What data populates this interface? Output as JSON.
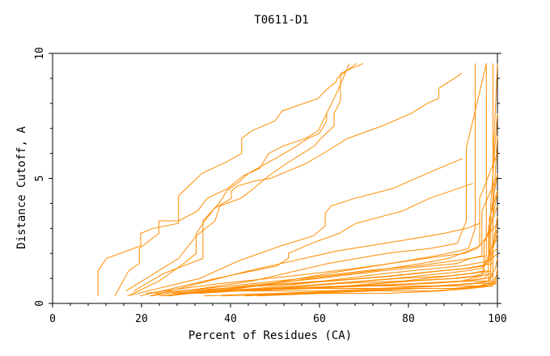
{
  "chart_data": {
    "type": "line",
    "title": "T0611-D1",
    "xlabel": "Percent of Residues (CA)",
    "ylabel": "Distance Cutoff, A",
    "xlim": [
      0,
      100
    ],
    "ylim": [
      0,
      10
    ],
    "x_ticks": [
      0,
      20,
      40,
      60,
      80,
      100
    ],
    "y_ticks": [
      0,
      5,
      10
    ],
    "grid": false,
    "legend": "none",
    "series_color": "#ff8c00",
    "series": [
      {
        "x": [
          10.2,
          10.2,
          12.1,
          19.8,
          19.8,
          22.5,
          28.3,
          28.3,
          33.6,
          39.5,
          42.5,
          42.5,
          44.7,
          50.0,
          51.6,
          53.3,
          59.7,
          61.3,
          63.9,
          63.9,
          68.3
        ],
        "y": [
          0.3,
          1.3,
          1.8,
          2.3,
          2.8,
          3.0,
          3.2,
          4.3,
          5.2,
          5.7,
          6.0,
          6.6,
          6.9,
          7.3,
          7.7,
          7.8,
          8.2,
          8.5,
          8.9,
          9.0,
          9.6
        ]
      },
      {
        "x": [
          14.0,
          17.1,
          19.5,
          19.5,
          23.9,
          23.9,
          28.3,
          32.6,
          34.7,
          39.4,
          42.8,
          46.5,
          48.6,
          51.9,
          56.9,
          59.7,
          64.1,
          66.7
        ],
        "y": [
          0.3,
          1.3,
          1.6,
          2.2,
          2.8,
          3.3,
          3.3,
          3.7,
          4.2,
          4.6,
          5.1,
          5.4,
          6.0,
          6.3,
          6.6,
          6.9,
          8.5,
          9.6
        ]
      },
      {
        "x": [
          18.3,
          25.0,
          33.8,
          33.8,
          37.4,
          39.2,
          42.2,
          44.0,
          50.1,
          54.0,
          57.4,
          60.0,
          61.6,
          61.6
        ],
        "y": [
          0.5,
          1.2,
          1.8,
          3.3,
          4.0,
          4.5,
          4.9,
          5.2,
          5.8,
          6.2,
          6.6,
          6.8,
          7.3,
          7.6
        ]
      },
      {
        "x": [
          16.5,
          28.3,
          32.3,
          36.5,
          37.6,
          42.3,
          44.5,
          48.6,
          52.6,
          58.9,
          60.3,
          63.3,
          63.3,
          64.7,
          64.7,
          69.8
        ],
        "y": [
          0.5,
          1.8,
          2.7,
          3.3,
          3.9,
          4.2,
          4.5,
          5.1,
          5.6,
          6.3,
          6.6,
          7.1,
          7.6,
          8.1,
          9.2,
          9.6
        ]
      },
      {
        "x": [
          17.0,
          24.0,
          29.5,
          32.3,
          32.3,
          34.2,
          36.4,
          40.2,
          40.2,
          41.6,
          45.5,
          49.0,
          53.0,
          57.0,
          61.8,
          66.3,
          74.1,
          80.6,
          84.2,
          86.8,
          86.8,
          92.0
        ],
        "y": [
          0.3,
          0.9,
          1.6,
          2.0,
          2.8,
          3.3,
          3.8,
          4.2,
          4.5,
          4.7,
          4.9,
          5.0,
          5.3,
          5.6,
          6.1,
          6.6,
          7.1,
          7.6,
          8.0,
          8.2,
          8.6,
          9.2
        ]
      },
      {
        "x": [
          16.8,
          33.1,
          41.8,
          51.3,
          58.6,
          61.3,
          61.3,
          62.6,
          67.9,
          76.5,
          85.5,
          92.2
        ],
        "y": [
          0.3,
          1.0,
          1.7,
          2.3,
          2.7,
          3.1,
          3.6,
          3.9,
          4.2,
          4.6,
          5.3,
          5.8
        ]
      },
      {
        "x": [
          19.7,
          36.8,
          50.4,
          53.0,
          53.0,
          58.2,
          64.4,
          68.2,
          78.7,
          84.7,
          94.5
        ],
        "y": [
          0.3,
          1.0,
          1.5,
          1.8,
          2.0,
          2.4,
          2.8,
          3.2,
          3.7,
          4.2,
          4.8
        ]
      },
      {
        "x": [
          22.0,
          44.0,
          64.0,
          78.0,
          88.0,
          93.0,
          96.0
        ],
        "y": [
          0.3,
          1.3,
          2.1,
          2.5,
          2.8,
          3.0,
          3.2
        ]
      },
      {
        "x": [
          22.0,
          45.0,
          62.0,
          75.0,
          85.0,
          91.0,
          93.0,
          93.0,
          97.5
        ],
        "y": [
          0.3,
          0.9,
          1.6,
          2.0,
          2.2,
          2.4,
          3.3,
          6.2,
          9.6
        ]
      },
      {
        "x": [
          26.0,
          46.0,
          62.0,
          76.0,
          86.0,
          91.5,
          93.5,
          95.0,
          95.0
        ],
        "y": [
          0.3,
          0.7,
          1.2,
          1.6,
          1.9,
          2.1,
          2.2,
          3.0,
          9.6
        ]
      },
      {
        "x": [
          24.0,
          42.0,
          58.0,
          72.0,
          83.0,
          89.0,
          92.0,
          96.0,
          96.0,
          100.0
        ],
        "y": [
          0.3,
          0.6,
          1.0,
          1.3,
          1.6,
          1.8,
          2.0,
          2.3,
          4.2,
          6.0
        ]
      },
      {
        "x": [
          25.0,
          43.0,
          60.0,
          74.0,
          85.0,
          91.0,
          94.0,
          97.5,
          97.5
        ],
        "y": [
          0.3,
          0.7,
          1.0,
          1.3,
          1.5,
          1.6,
          1.8,
          1.9,
          9.6
        ]
      },
      {
        "x": [
          27.0,
          45.0,
          61.0,
          75.0,
          86.0,
          92.0,
          95.0,
          98.2,
          98.2,
          100.0
        ],
        "y": [
          0.4,
          0.7,
          0.9,
          1.2,
          1.4,
          1.5,
          1.6,
          1.7,
          3.4,
          4.5
        ]
      },
      {
        "x": [
          28.0,
          46.0,
          62.0,
          76.0,
          87.0,
          93.0,
          96.0,
          99.0,
          99.0
        ],
        "y": [
          0.4,
          0.6,
          0.9,
          1.1,
          1.3,
          1.4,
          1.5,
          1.6,
          9.6
        ]
      },
      {
        "x": [
          30.0,
          48.0,
          63.0,
          77.0,
          88.0,
          93.0,
          96.5,
          98.0,
          100.0
        ],
        "y": [
          0.4,
          0.6,
          0.8,
          1.0,
          1.2,
          1.3,
          1.4,
          1.8,
          3.0
        ]
      },
      {
        "x": [
          31.0,
          49.0,
          64.0,
          78.0,
          89.0,
          94.0,
          97.0,
          97.0,
          100.0
        ],
        "y": [
          0.4,
          0.6,
          0.8,
          1.0,
          1.1,
          1.2,
          1.3,
          2.4,
          3.9
        ]
      },
      {
        "x": [
          32.0,
          50.0,
          65.0,
          79.0,
          89.5,
          94.5,
          98.0,
          98.0,
          100.0
        ],
        "y": [
          0.4,
          0.6,
          0.8,
          0.9,
          1.1,
          1.2,
          1.3,
          3.0,
          5.2
        ]
      },
      {
        "x": [
          33.0,
          51.0,
          66.0,
          80.0,
          90.0,
          95.0,
          98.5,
          98.5,
          100.0
        ],
        "y": [
          0.4,
          0.6,
          0.7,
          0.9,
          1.0,
          1.1,
          1.3,
          4.0,
          7.6
        ]
      },
      {
        "x": [
          34.0,
          52.0,
          67.0,
          81.0,
          91.0,
          96.0,
          99.0,
          99.0,
          100.0
        ],
        "y": [
          0.5,
          0.6,
          0.7,
          0.9,
          1.0,
          1.1,
          1.2,
          5.6,
          9.6
        ]
      },
      {
        "x": [
          35.0,
          53.0,
          68.0,
          82.0,
          92.0,
          96.5,
          97.5,
          100.0
        ],
        "y": [
          0.5,
          0.6,
          0.7,
          0.8,
          0.9,
          1.1,
          1.8,
          2.2
        ]
      },
      {
        "x": [
          36.0,
          54.0,
          69.0,
          83.0,
          92.5,
          97.0,
          98.0,
          98.0,
          100.0
        ],
        "y": [
          0.5,
          0.6,
          0.7,
          0.8,
          0.9,
          1.0,
          1.2,
          2.6,
          4.4
        ]
      },
      {
        "x": [
          37.0,
          55.0,
          70.0,
          84.0,
          93.0,
          97.5,
          99.0,
          99.0,
          100.0
        ],
        "y": [
          0.5,
          0.6,
          0.7,
          0.8,
          0.9,
          1.0,
          1.1,
          3.6,
          6.7
        ]
      },
      {
        "x": [
          38.0,
          56.0,
          71.0,
          85.0,
          94.0,
          98.0,
          99.5,
          100.0
        ],
        "y": [
          0.5,
          0.6,
          0.7,
          0.8,
          0.9,
          0.9,
          1.4,
          1.8
        ]
      },
      {
        "x": [
          39.0,
          57.0,
          72.0,
          86.0,
          94.5,
          98.0,
          98.0,
          100.0
        ],
        "y": [
          0.5,
          0.6,
          0.7,
          0.7,
          0.8,
          0.9,
          2.0,
          2.6
        ]
      },
      {
        "x": [
          40.0,
          58.0,
          73.0,
          87.0,
          95.0,
          98.5,
          98.5,
          100.0
        ],
        "y": [
          0.5,
          0.6,
          0.6,
          0.7,
          0.8,
          0.9,
          1.6,
          3.5
        ]
      },
      {
        "x": [
          41.0,
          59.0,
          74.0,
          88.0,
          95.5,
          99.0,
          99.0,
          100.0
        ],
        "y": [
          0.5,
          0.6,
          0.6,
          0.7,
          0.8,
          0.8,
          2.2,
          2.8
        ]
      },
      {
        "x": [
          42.0,
          60.0,
          75.0,
          89.0,
          96.0,
          99.5,
          100.0
        ],
        "y": [
          0.5,
          0.5,
          0.6,
          0.7,
          0.7,
          0.8,
          1.4
        ]
      },
      {
        "x": [
          34.0,
          50.0,
          66.0,
          80.0,
          90.0,
          96.0,
          99.2,
          100.0
        ],
        "y": [
          0.3,
          0.4,
          0.5,
          0.6,
          0.6,
          0.7,
          0.9,
          1.2
        ]
      },
      {
        "x": [
          38.0,
          54.0,
          69.0,
          83.0,
          92.0,
          97.0,
          100.0
        ],
        "y": [
          0.3,
          0.4,
          0.5,
          0.6,
          0.6,
          0.7,
          0.9
        ]
      },
      {
        "x": [
          43.0,
          58.0,
          72.0,
          85.0,
          93.0,
          98.0,
          100.0
        ],
        "y": [
          0.3,
          0.4,
          0.5,
          0.5,
          0.6,
          0.7,
          0.8
        ]
      },
      {
        "x": [
          46.0,
          61.0,
          75.0,
          87.0,
          94.0,
          99.0
        ],
        "y": [
          0.3,
          0.4,
          0.4,
          0.5,
          0.6,
          0.7
        ]
      },
      {
        "x": [
          23.0,
          40.0,
          56.0,
          70.0,
          82.0,
          90.0,
          94.0,
          96.5,
          96.5,
          100.0
        ],
        "y": [
          0.4,
          0.7,
          1.0,
          1.3,
          1.5,
          1.7,
          1.8,
          1.9,
          3.7,
          5.1
        ]
      },
      {
        "x": [
          21.0,
          38.0,
          54.0,
          68.0,
          80.0,
          88.0,
          92.5,
          95.5,
          100.0
        ],
        "y": [
          0.4,
          0.8,
          1.1,
          1.4,
          1.7,
          1.9,
          2.0,
          2.2,
          3.2
        ]
      },
      {
        "x": [
          29.0,
          47.0,
          63.0,
          77.0,
          87.5,
          93.5,
          97.0,
          100.0
        ],
        "y": [
          0.5,
          0.7,
          0.9,
          1.1,
          1.3,
          1.4,
          1.5,
          2.0
        ]
      }
    ]
  }
}
